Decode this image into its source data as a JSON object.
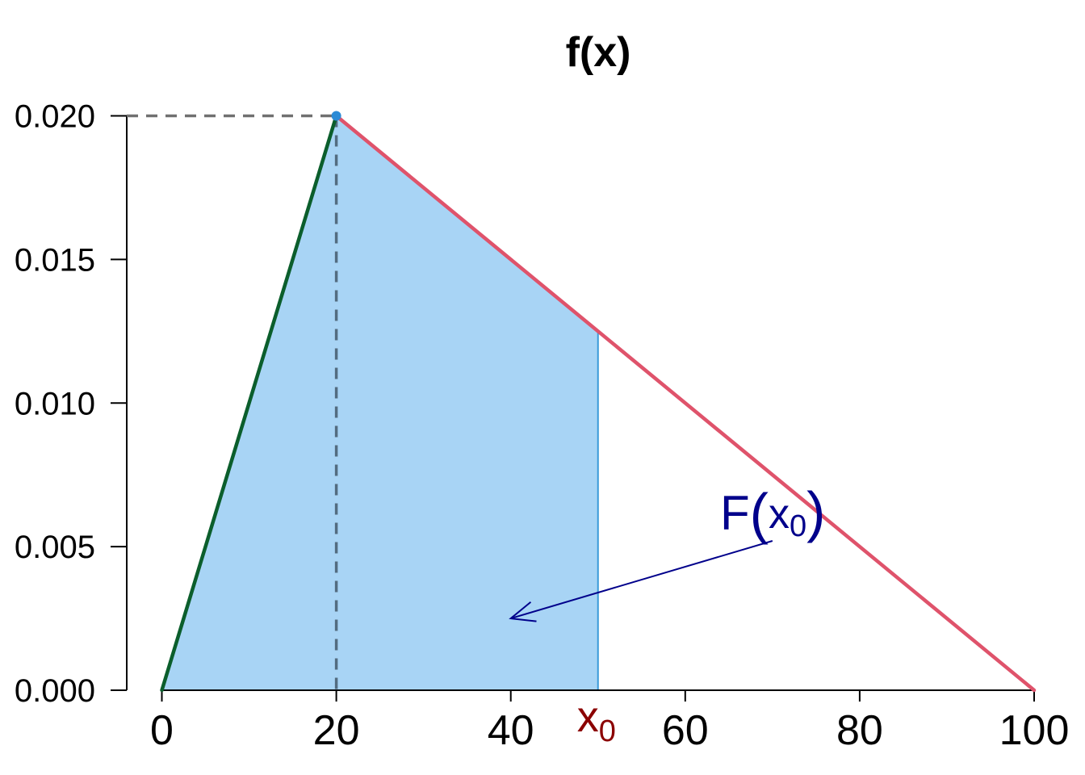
{
  "chart_data": {
    "type": "area",
    "title": "f(x)",
    "xlabel": "",
    "ylabel": "",
    "xlim": [
      0,
      100
    ],
    "ylim": [
      0,
      0.02
    ],
    "x_ticks": [
      0,
      20,
      40,
      60,
      80,
      100
    ],
    "x_tick_labels": [
      "0",
      "20",
      "40",
      "60",
      "80",
      "100"
    ],
    "y_ticks": [
      0,
      0.005,
      0.01,
      0.015,
      0.02
    ],
    "y_tick_labels": [
      "0.000",
      "0.005",
      "0.010",
      "0.015",
      "0.020"
    ],
    "grid": false,
    "series": [
      {
        "x": [
          0,
          20
        ],
        "y": [
          0,
          0.02
        ],
        "color": "#0b5e2c"
      },
      {
        "x": [
          20,
          100
        ],
        "y": [
          0.02,
          0
        ],
        "color": "#df536b"
      }
    ],
    "shaded_area": {
      "x_from": 0,
      "x_to": 50,
      "x": [
        0,
        20,
        50,
        50
      ],
      "y": [
        0,
        0.02,
        0.0125,
        0
      ],
      "fill": "#a8d4f5",
      "edge": "#3a9ad9"
    },
    "mode_point": {
      "x": 20,
      "y": 0.02,
      "color": "#2b8bd6"
    },
    "reference_lines_color": "#707070",
    "x0_marker": {
      "x": 50,
      "label": "x",
      "subscript": "0",
      "color": "#8b0000"
    },
    "annotation": {
      "label_main": "F",
      "label_open": "(",
      "label_var": "x",
      "label_sub": "0",
      "label_close": ")",
      "label_at": {
        "x": 64,
        "y": 0.0056
      },
      "arrow_from": {
        "x": 70,
        "y": 0.0052
      },
      "arrow_to": {
        "x": 40,
        "y": 0.0025
      },
      "color": "#00008b"
    }
  }
}
